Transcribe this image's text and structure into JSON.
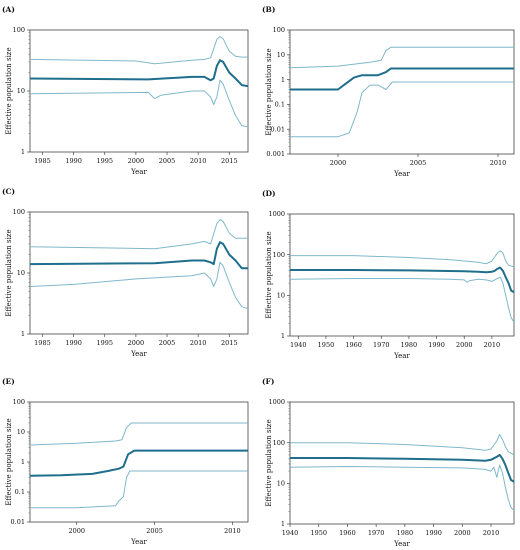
{
  "figure": {
    "background": "#ffffff",
    "line_color": "#1e6e8c",
    "band_color": "#7fb8cc"
  },
  "chart_data": [
    {
      "panel": "(A)",
      "type": "line",
      "xlabel": "Year",
      "ylabel": "Effective population size",
      "xlim": [
        1983,
        2018
      ],
      "ylim": [
        1,
        100
      ],
      "yscale": "log",
      "grid": false,
      "xticks": [
        1985,
        1990,
        1995,
        2000,
        2005,
        2010,
        2015
      ],
      "yticks": [
        1,
        10,
        100
      ],
      "ytick_labels": [
        "1",
        "10",
        "100"
      ],
      "series": [
        {
          "role": "upper",
          "x": [
            1983,
            2000,
            2003,
            2009,
            2011,
            2012,
            2013,
            2013.5,
            2014,
            2015,
            2016,
            2017,
            2018
          ],
          "y": [
            33,
            31,
            28,
            32,
            33,
            35,
            70,
            78,
            72,
            45,
            37,
            36,
            36
          ]
        },
        {
          "role": "median",
          "x": [
            1983,
            2002,
            2009,
            2011,
            2012,
            2012.5,
            2013,
            2013.5,
            2014,
            2015,
            2016,
            2017,
            2018
          ],
          "y": [
            16,
            15.5,
            17,
            17,
            15,
            16,
            26,
            32,
            30,
            20,
            16,
            12.5,
            12
          ]
        },
        {
          "role": "lower",
          "x": [
            1983,
            2002,
            2003,
            2004,
            2009,
            2011,
            2012,
            2012.5,
            2013,
            2013.5,
            2014,
            2015,
            2016,
            2017,
            2018
          ],
          "y": [
            9,
            9.5,
            7.5,
            8.5,
            10,
            10,
            8,
            6,
            8,
            15,
            13,
            7,
            4,
            2.7,
            2.6
          ]
        }
      ]
    },
    {
      "panel": "(B)",
      "type": "line",
      "xlabel": "Year",
      "ylabel": "Effective population size",
      "xlim": [
        1997,
        2011
      ],
      "ylim": [
        0.001,
        100
      ],
      "yscale": "log",
      "grid": false,
      "xticks": [
        2000,
        2005,
        2010
      ],
      "yticks": [
        0.001,
        0.01,
        0.1,
        1,
        10,
        100
      ],
      "ytick_labels": [
        "0.001",
        "0.01",
        "0.1",
        "1",
        "10",
        "100"
      ],
      "series": [
        {
          "role": "upper",
          "x": [
            1997,
            2000,
            2002,
            2002.7,
            2003,
            2003.3,
            2011
          ],
          "y": [
            3,
            3.5,
            5,
            6,
            15,
            20,
            20
          ]
        },
        {
          "role": "median",
          "x": [
            1997,
            2000,
            2000.5,
            2001,
            2001.5,
            2002.5,
            2003,
            2003.3,
            2011
          ],
          "y": [
            0.4,
            0.4,
            0.7,
            1.2,
            1.5,
            1.5,
            2,
            2.8,
            2.8
          ]
        },
        {
          "role": "lower",
          "x": [
            1997,
            2000,
            2000.7,
            2001.2,
            2001.5,
            2002,
            2002.5,
            2003,
            2003.4,
            2011
          ],
          "y": [
            0.005,
            0.005,
            0.007,
            0.05,
            0.3,
            0.6,
            0.6,
            0.4,
            0.8,
            0.8
          ]
        }
      ]
    },
    {
      "panel": "(C)",
      "type": "line",
      "xlabel": "Year",
      "ylabel": "Effective population size",
      "xlim": [
        1983,
        2018
      ],
      "ylim": [
        1,
        100
      ],
      "yscale": "log",
      "grid": false,
      "xticks": [
        1985,
        1990,
        1995,
        2000,
        2005,
        2010,
        2015
      ],
      "yticks": [
        1,
        10,
        100
      ],
      "ytick_labels": [
        "1",
        "10",
        "100"
      ],
      "series": [
        {
          "role": "upper",
          "x": [
            1983,
            2003,
            2009,
            2011,
            2012,
            2013,
            2013.5,
            2014,
            2015,
            2016,
            2017,
            2018
          ],
          "y": [
            27,
            25,
            30,
            33,
            30,
            65,
            75,
            70,
            45,
            37,
            37,
            37
          ]
        },
        {
          "role": "median",
          "x": [
            1983,
            2003,
            2009,
            2011,
            2012,
            2012.5,
            2013,
            2013.5,
            2014,
            2015,
            2016,
            2017,
            2018
          ],
          "y": [
            14,
            14.5,
            16,
            16,
            15,
            14,
            25,
            32,
            30,
            20,
            16,
            12,
            12
          ]
        },
        {
          "role": "lower",
          "x": [
            1983,
            1990,
            2000,
            2009,
            2011,
            2012,
            2012.5,
            2013,
            2013.5,
            2014,
            2015,
            2016,
            2017,
            2018
          ],
          "y": [
            6,
            6.5,
            8,
            9,
            10,
            8,
            6,
            8,
            15,
            13,
            7,
            4,
            2.8,
            2.6
          ]
        }
      ]
    },
    {
      "panel": "(D)",
      "type": "line",
      "xlabel": "Year",
      "ylabel": "Effective population size",
      "xlim": [
        1937,
        2018
      ],
      "ylim": [
        1,
        1000
      ],
      "yscale": "log",
      "grid": false,
      "xticks": [
        1940,
        1950,
        1960,
        1970,
        1980,
        1990,
        2000,
        2010
      ],
      "yticks": [
        1,
        10,
        100,
        1000
      ],
      "ytick_labels": [
        "1",
        "10",
        "100",
        "1000"
      ],
      "series": [
        {
          "role": "upper",
          "x": [
            1937,
            1960,
            1980,
            1995,
            2000,
            2005,
            2008,
            2010,
            2012,
            2013,
            2014,
            2015,
            2016,
            2018
          ],
          "y": [
            95,
            95,
            85,
            75,
            70,
            65,
            60,
            70,
            110,
            125,
            110,
            70,
            55,
            50
          ]
        },
        {
          "role": "median",
          "x": [
            1937,
            1960,
            1980,
            2000,
            2005,
            2008,
            2010,
            2011,
            2012,
            2013,
            2014,
            2015,
            2016,
            2017,
            2018
          ],
          "y": [
            42,
            42,
            41,
            39,
            38,
            37,
            38,
            40,
            45,
            48,
            40,
            28,
            20,
            13,
            12
          ]
        },
        {
          "role": "lower",
          "x": [
            1937,
            1960,
            1980,
            1995,
            2000,
            2001,
            2002,
            2005,
            2008,
            2010,
            2012,
            2013,
            2014,
            2015,
            2016,
            2017,
            2018
          ],
          "y": [
            25,
            26,
            26,
            25,
            24,
            21,
            23,
            25,
            24,
            22,
            26,
            28,
            20,
            10,
            5,
            2.8,
            2.2
          ]
        }
      ]
    },
    {
      "panel": "(E)",
      "type": "line",
      "xlabel": "Year",
      "ylabel": "Effective population size",
      "xlim": [
        1997,
        2011
      ],
      "ylim": [
        0.01,
        100
      ],
      "yscale": "log",
      "grid": false,
      "xticks": [
        2000,
        2005,
        2010
      ],
      "yticks": [
        0.01,
        0.1,
        1,
        10,
        100
      ],
      "ytick_labels": [
        "0.01",
        "0.1",
        "1",
        "10",
        "100"
      ],
      "series": [
        {
          "role": "upper",
          "x": [
            1997,
            2000,
            2002.5,
            2002.9,
            2003.2,
            2003.5,
            2011
          ],
          "y": [
            3.7,
            4.2,
            5,
            5.5,
            14,
            20,
            20
          ]
        },
        {
          "role": "median",
          "x": [
            1997,
            1999,
            2001,
            2002,
            2002.7,
            2003,
            2003.3,
            2003.7,
            2011
          ],
          "y": [
            0.35,
            0.36,
            0.4,
            0.5,
            0.6,
            0.7,
            1.8,
            2.4,
            2.4
          ]
        },
        {
          "role": "lower",
          "x": [
            1997,
            2000,
            2002.5,
            2002.7,
            2003,
            2003.2,
            2003.4,
            2011
          ],
          "y": [
            0.03,
            0.03,
            0.035,
            0.05,
            0.07,
            0.3,
            0.5,
            0.5
          ]
        }
      ]
    },
    {
      "panel": "(F)",
      "type": "line",
      "xlabel": "Year",
      "ylabel": "Effective population size",
      "xlim": [
        1940,
        2018
      ],
      "ylim": [
        1,
        1000
      ],
      "yscale": "log",
      "grid": false,
      "xticks": [
        1940,
        1950,
        1960,
        1970,
        1980,
        1990,
        2000,
        2010
      ],
      "yticks": [
        1,
        10,
        100,
        1000
      ],
      "ytick_labels": [
        "1",
        "10",
        "100",
        "1000"
      ],
      "series": [
        {
          "role": "upper",
          "x": [
            1940,
            1960,
            1980,
            2000,
            2008,
            2010,
            2012,
            2013,
            2014,
            2015,
            2016,
            2018
          ],
          "y": [
            100,
            100,
            90,
            75,
            65,
            70,
            110,
            160,
            120,
            80,
            60,
            50
          ]
        },
        {
          "role": "median",
          "x": [
            1940,
            1960,
            1980,
            2000,
            2008,
            2010,
            2012,
            2013,
            2014,
            2015,
            2016,
            2017,
            2018
          ],
          "y": [
            42,
            42,
            40,
            38,
            36,
            38,
            45,
            50,
            40,
            28,
            18,
            12,
            11
          ]
        },
        {
          "role": "lower",
          "x": [
            1940,
            1960,
            1980,
            2000,
            2008,
            2010,
            2011,
            2012,
            2013,
            2014,
            2015,
            2016,
            2017,
            2018
          ],
          "y": [
            25,
            26,
            25,
            24,
            22,
            20,
            25,
            14,
            28,
            18,
            8,
            4,
            2.5,
            2.2
          ]
        }
      ]
    }
  ]
}
